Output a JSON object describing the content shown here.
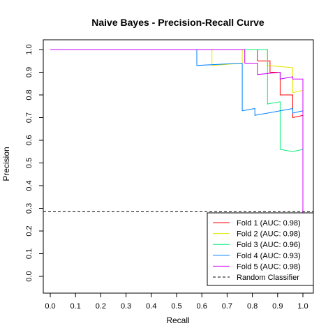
{
  "chart_data": {
    "type": "line",
    "title": "Naive Bayes - Precision-Recall Curve",
    "xlabel": "Recall",
    "ylabel": "Precision",
    "xlim": [
      0.0,
      1.0
    ],
    "ylim": [
      0.0,
      1.0
    ],
    "xticks": [
      "0.0",
      "0.1",
      "0.2",
      "0.3",
      "0.4",
      "0.5",
      "0.6",
      "0.7",
      "0.8",
      "0.9",
      "1.0"
    ],
    "yticks": [
      "0.0",
      "0.1",
      "0.2",
      "0.3",
      "0.4",
      "0.5",
      "0.6",
      "0.7",
      "0.8",
      "0.9",
      "1.0"
    ],
    "grid": false,
    "legend_position": "bottom-right",
    "series": [
      {
        "name": "Fold 1 (AUC: 0.98)",
        "color": "#ff0000",
        "points": [
          [
            0.0,
            1.0
          ],
          [
            0.82,
            1.0
          ],
          [
            0.82,
            0.95
          ],
          [
            0.87,
            0.95
          ],
          [
            0.87,
            0.9
          ],
          [
            0.91,
            0.9
          ],
          [
            0.91,
            0.8
          ],
          [
            0.96,
            0.8
          ],
          [
            0.96,
            0.7
          ],
          [
            1.0,
            0.71
          ],
          [
            1.0,
            0.29
          ]
        ]
      },
      {
        "name": "Fold 2 (AUC: 0.98)",
        "color": "#e6e600",
        "points": [
          [
            0.0,
            1.0
          ],
          [
            0.64,
            1.0
          ],
          [
            0.64,
            0.93
          ],
          [
            0.76,
            0.94
          ],
          [
            0.76,
            1.0
          ],
          [
            0.86,
            1.0
          ],
          [
            0.86,
            0.93
          ],
          [
            0.96,
            0.92
          ],
          [
            0.96,
            0.81
          ],
          [
            1.0,
            0.82
          ],
          [
            1.0,
            0.29
          ]
        ]
      },
      {
        "name": "Fold 3 (AUC: 0.96)",
        "color": "#00ee76",
        "points": [
          [
            0.0,
            1.0
          ],
          [
            0.86,
            1.0
          ],
          [
            0.86,
            0.76
          ],
          [
            0.91,
            0.77
          ],
          [
            0.91,
            0.56
          ],
          [
            0.96,
            0.55
          ],
          [
            1.0,
            0.56
          ],
          [
            1.0,
            0.29
          ]
        ]
      },
      {
        "name": "Fold 4 (AUC: 0.93)",
        "color": "#0080ff",
        "points": [
          [
            0.0,
            1.0
          ],
          [
            0.58,
            1.0
          ],
          [
            0.58,
            0.93
          ],
          [
            0.76,
            0.94
          ],
          [
            0.76,
            0.73
          ],
          [
            0.81,
            0.74
          ],
          [
            0.81,
            0.71
          ],
          [
            0.96,
            0.74
          ],
          [
            0.96,
            0.72
          ],
          [
            1.0,
            0.73
          ],
          [
            1.0,
            0.29
          ]
        ]
      },
      {
        "name": "Fold 5 (AUC: 0.98)",
        "color": "#cc00ff",
        "points": [
          [
            0.0,
            1.0
          ],
          [
            0.77,
            1.0
          ],
          [
            0.77,
            0.94
          ],
          [
            0.82,
            0.94
          ],
          [
            0.82,
            0.89
          ],
          [
            0.91,
            0.9
          ],
          [
            0.91,
            0.87
          ],
          [
            0.96,
            0.88
          ],
          [
            0.96,
            0.87
          ],
          [
            1.0,
            0.87
          ],
          [
            1.0,
            0.28
          ]
        ]
      }
    ],
    "reference_line": {
      "name": "Random Classifier",
      "y": 0.285,
      "color": "#000000",
      "style": "dashed"
    }
  }
}
